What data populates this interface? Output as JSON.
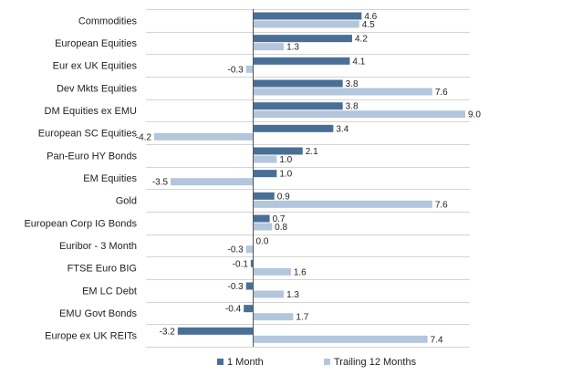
{
  "chart_data": {
    "type": "bar",
    "orientation": "horizontal",
    "categories": [
      "Commodities",
      "European Equities",
      "Eur ex UK Equities",
      "Dev Mkts Equities",
      "DM Equities ex EMU",
      "European SC Equities",
      "Pan-Euro HY Bonds",
      "EM Equities",
      "Gold",
      "European Corp IG Bonds",
      "Euribor - 3 Month",
      "FTSE Euro BIG",
      "EM LC Debt",
      "EMU Govt Bonds",
      "Europe ex UK REITs"
    ],
    "series": [
      {
        "name": "1 Month",
        "color": "#4a6f96",
        "values": [
          4.6,
          4.2,
          4.1,
          3.8,
          3.8,
          3.4,
          2.1,
          1.0,
          0.9,
          0.7,
          0.0,
          -0.1,
          -0.3,
          -0.4,
          -3.2
        ]
      },
      {
        "name": "Trailing 12 Months",
        "color": "#b3c6dc",
        "values": [
          4.5,
          1.3,
          -0.3,
          7.6,
          9.0,
          -4.2,
          1.0,
          -3.5,
          7.6,
          0.8,
          -0.3,
          1.6,
          1.3,
          1.7,
          7.4
        ]
      }
    ],
    "xlim": [
      -4.2,
      9.0
    ],
    "title": "",
    "xlabel": "",
    "ylabel": "",
    "grid": "horizontal separators",
    "legend_position": "bottom-center"
  }
}
